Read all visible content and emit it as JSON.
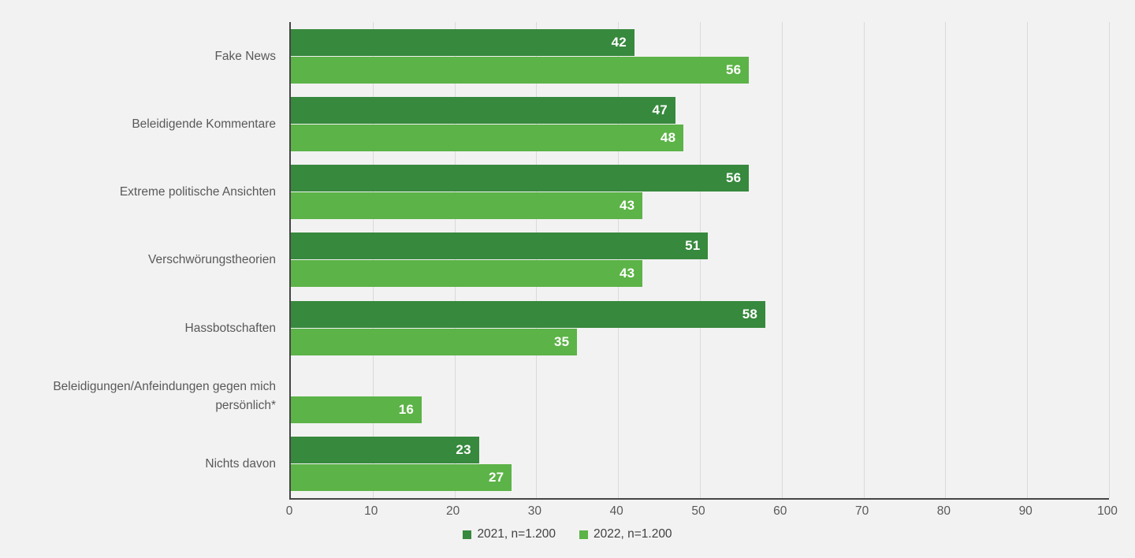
{
  "chart_data": {
    "type": "bar",
    "orientation": "horizontal",
    "title": "",
    "categories": [
      "Fake News",
      "Beleidigende Kommentare",
      "Extreme politische Ansichten",
      "Verschwörungstheorien",
      "Hassbotschaften",
      "Beleidigungen/Anfeindungen gegen mich persönlich*",
      "Nichts davon"
    ],
    "series": [
      {
        "key": "2021",
        "name": "2021, n=1.200",
        "color": "#37893D",
        "values": [
          42,
          47,
          56,
          51,
          58,
          null,
          23
        ]
      },
      {
        "key": "2022",
        "name": "2022, n=1.200",
        "color": "#5CB347",
        "values": [
          56,
          48,
          43,
          43,
          35,
          16,
          27
        ]
      }
    ],
    "xlim": [
      0,
      100
    ],
    "xticks": [
      0,
      10,
      20,
      30,
      40,
      50,
      60,
      70,
      80,
      90,
      100
    ],
    "grid": true,
    "legend_position": "bottom",
    "value_label_position": "inside-end"
  },
  "colors": {
    "background": "#F2F2F2",
    "gridline": "#DADADA",
    "axis_line": "#454545",
    "tick_text": "#595959",
    "category_text": "#595959",
    "legend_text": "#404040",
    "value_label_text": "#FFFFFF",
    "series_2021": "#37893D",
    "series_2022": "#5CB347"
  }
}
